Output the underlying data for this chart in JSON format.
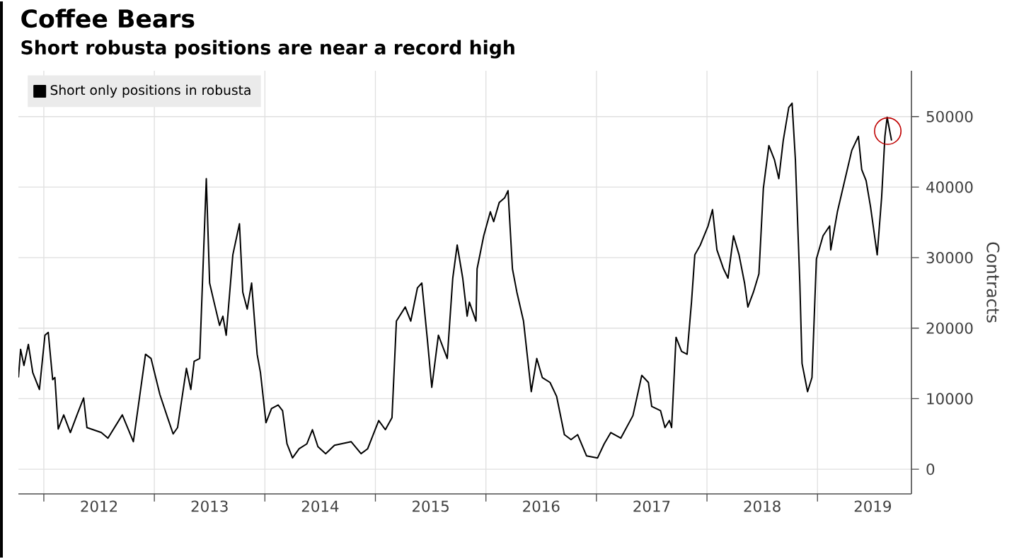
{
  "chart_data": {
    "type": "line",
    "title": "Coffee Bears",
    "subtitle": "Short robusta positions are near a record high",
    "ylabel": "Contracts",
    "x": [
      2011.77,
      2011.79,
      2011.82,
      2011.86,
      2011.9,
      2011.96,
      2012.01,
      2012.04,
      2012.08,
      2012.1,
      2012.13,
      2012.18,
      2012.24,
      2012.3,
      2012.36,
      2012.39,
      2012.52,
      2012.58,
      2012.71,
      2012.81,
      2012.92,
      2012.97,
      2013.05,
      2013.12,
      2013.17,
      2013.21,
      2013.29,
      2013.33,
      2013.36,
      2013.41,
      2013.47,
      2013.5,
      2013.54,
      2013.59,
      2013.62,
      2013.65,
      2013.71,
      2013.77,
      2013.8,
      2013.84,
      2013.88,
      2013.93,
      2013.96,
      2014.01,
      2014.06,
      2014.12,
      2014.16,
      2014.2,
      2014.25,
      2014.31,
      2014.38,
      2014.43,
      2014.48,
      2014.55,
      2014.63,
      2014.78,
      2014.87,
      2014.93,
      2015.03,
      2015.09,
      2015.15,
      2015.19,
      2015.27,
      2015.32,
      2015.38,
      2015.42,
      2015.47,
      2015.51,
      2015.57,
      2015.65,
      2015.7,
      2015.74,
      2015.79,
      2015.83,
      2015.85,
      2015.91,
      2015.92,
      2015.98,
      2016.04,
      2016.07,
      2016.12,
      2016.17,
      2016.2,
      2016.24,
      2016.28,
      2016.34,
      2016.41,
      2016.46,
      2016.51,
      2016.58,
      2016.64,
      2016.71,
      2016.77,
      2016.83,
      2016.91,
      2017.01,
      2017.07,
      2017.13,
      2017.22,
      2017.33,
      2017.41,
      2017.47,
      2017.5,
      2017.58,
      2017.62,
      2017.66,
      2017.68,
      2017.72,
      2017.77,
      2017.82,
      2017.86,
      2017.89,
      2017.94,
      2018.01,
      2018.05,
      2018.09,
      2018.15,
      2018.19,
      2018.24,
      2018.29,
      2018.34,
      2018.37,
      2018.42,
      2018.47,
      2018.51,
      2018.56,
      2018.61,
      2018.65,
      2018.69,
      2018.74,
      2018.77,
      2018.8,
      2018.84,
      2018.86,
      2018.91,
      2018.95,
      2018.99,
      2019.05,
      2019.11,
      2019.12,
      2019.18,
      2019.25,
      2019.31,
      2019.37,
      2019.4,
      2019.44,
      2019.48,
      2019.54,
      2019.58,
      2019.61,
      2019.63,
      2019.67
    ],
    "series": [
      {
        "name": "Short only positions in robusta",
        "color": "#000000",
        "values": [
          13000,
          17000,
          14700,
          17700,
          13700,
          11300,
          19000,
          19400,
          12700,
          13000,
          5700,
          7700,
          5200,
          7700,
          10100,
          5900,
          5200,
          4400,
          7700,
          3900,
          16300,
          15700,
          10600,
          7300,
          5000,
          5900,
          14300,
          11300,
          15300,
          15700,
          41200,
          26400,
          23700,
          20400,
          21700,
          19000,
          30400,
          34800,
          25100,
          22700,
          26400,
          16300,
          13700,
          6600,
          8600,
          9100,
          8300,
          3600,
          1600,
          2900,
          3600,
          5600,
          3200,
          2200,
          3400,
          3900,
          2200,
          2900,
          6900,
          5600,
          7300,
          21000,
          23000,
          21000,
          25700,
          26400,
          18400,
          11600,
          19000,
          15700,
          27100,
          31800,
          27100,
          21700,
          23700,
          21000,
          28400,
          33100,
          36500,
          35100,
          37800,
          38500,
          39500,
          28400,
          25100,
          21000,
          11000,
          15700,
          13000,
          12300,
          10300,
          4900,
          4200,
          4900,
          1900,
          1600,
          3600,
          5200,
          4400,
          7600,
          13300,
          12300,
          8900,
          8300,
          5900,
          6900,
          5900,
          18700,
          16700,
          16300,
          23700,
          30400,
          31800,
          34500,
          36800,
          31100,
          28400,
          27100,
          33100,
          30400,
          26400,
          23000,
          25100,
          27700,
          39800,
          45900,
          43900,
          41200,
          46600,
          51300,
          51900,
          43900,
          26400,
          15000,
          11000,
          13000,
          29800,
          33100,
          34500,
          31100,
          36500,
          41200,
          45200,
          47200,
          42500,
          40900,
          37200,
          30400,
          38500,
          47200,
          49900,
          46600
        ]
      }
    ],
    "xlim": [
      2011.77,
      2019.85
    ],
    "ylim": [
      -3500,
      56500
    ],
    "xticks": [
      {
        "value": 2012,
        "label": null
      },
      {
        "value": 2012.5,
        "label": "2012"
      },
      {
        "value": 2013,
        "label": null
      },
      {
        "value": 2013.5,
        "label": "2013"
      },
      {
        "value": 2014,
        "label": null
      },
      {
        "value": 2014.5,
        "label": "2014"
      },
      {
        "value": 2015,
        "label": null
      },
      {
        "value": 2015.5,
        "label": "2015"
      },
      {
        "value": 2016,
        "label": null
      },
      {
        "value": 2016.5,
        "label": "2016"
      },
      {
        "value": 2017,
        "label": null
      },
      {
        "value": 2017.5,
        "label": "2017"
      },
      {
        "value": 2018,
        "label": null
      },
      {
        "value": 2018.5,
        "label": "2018"
      },
      {
        "value": 2019,
        "label": null
      },
      {
        "value": 2019.5,
        "label": "2019"
      }
    ],
    "yticks": [
      0,
      10000,
      20000,
      30000,
      40000,
      50000
    ],
    "grid": true,
    "legend": "top left",
    "marker": "none",
    "line_style": "solid"
  }
}
